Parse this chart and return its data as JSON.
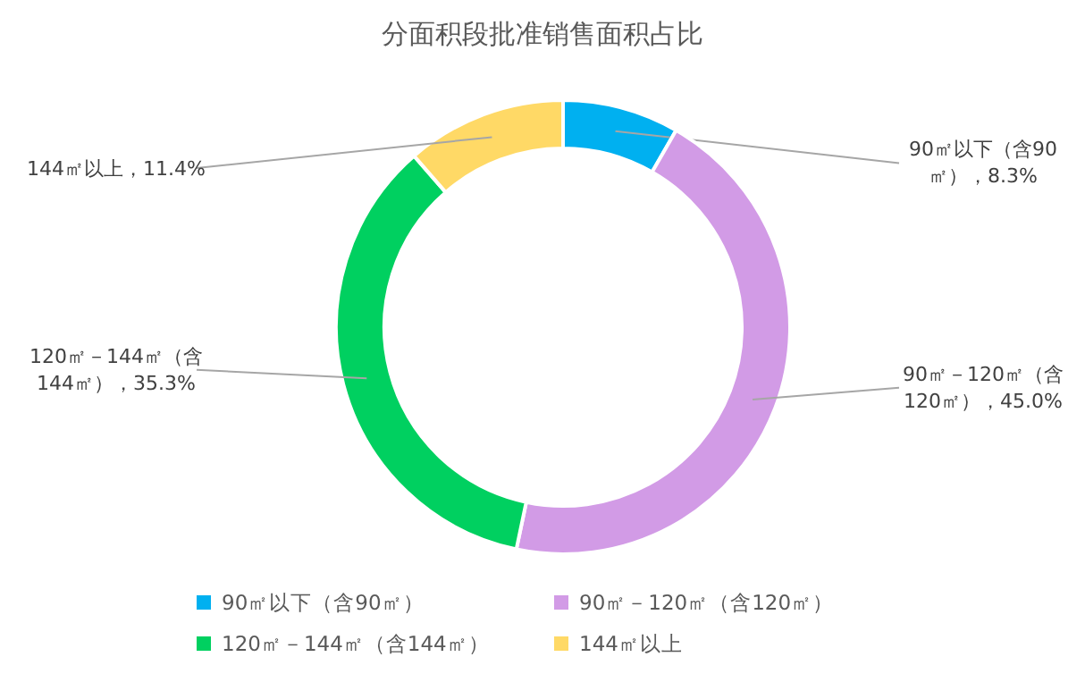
{
  "chart_data": {
    "type": "donut",
    "title": "分面积段批准销售面积占比",
    "categories": [
      "90㎡以下（含90㎡）",
      "90㎡－120㎡（含120㎡）",
      "120㎡－144㎡（含144㎡）",
      "144㎡以上"
    ],
    "values": [
      8.3,
      45.0,
      35.3,
      11.4
    ],
    "colors": [
      "#00b0f0",
      "#d29be6",
      "#00d060",
      "#ffd966"
    ],
    "value_labels": [
      "90㎡以下（含90㎡），8.3%",
      "90㎡－120㎡（含120㎡），45.0%",
      "120㎡－144㎡（含144㎡），35.3%",
      "144㎡以上，11.4%"
    ],
    "legend": "bottom"
  }
}
